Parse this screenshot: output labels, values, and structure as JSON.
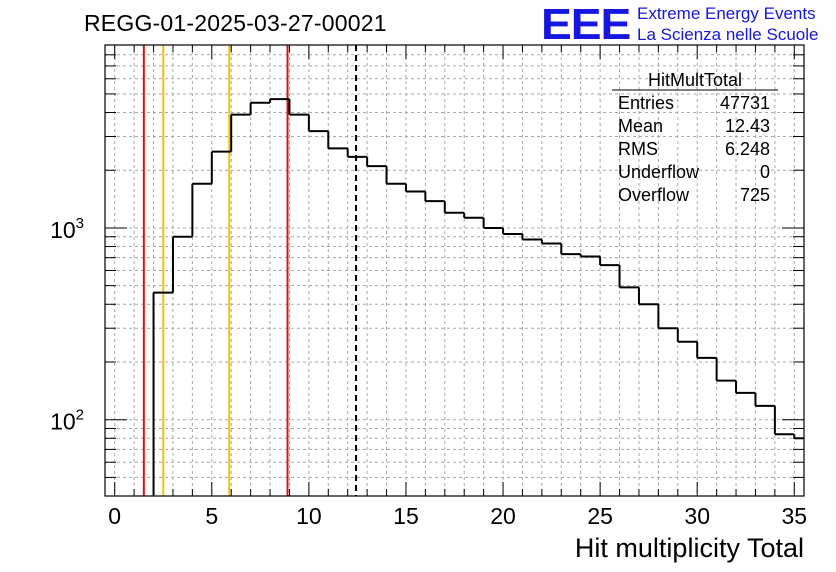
{
  "header": {
    "run_title": "REGG-01-2025-03-27-00021"
  },
  "logo": {
    "mark": "EEE",
    "line1": "Extreme Energy Events",
    "line2": "La Scienza nelle Scuole",
    "color": "#1616e0"
  },
  "stats_box": {
    "title": "HitMultTotal",
    "rows": [
      {
        "label": "Entries",
        "value": "47731"
      },
      {
        "label": "Mean",
        "value": "12.43"
      },
      {
        "label": "RMS",
        "value": "6.248"
      },
      {
        "label": "Underflow",
        "value": "0"
      },
      {
        "label": "Overflow",
        "value": "725"
      }
    ]
  },
  "chart_data": {
    "type": "histogram",
    "xlabel": "Hit multiplicity Total",
    "ylabel": "",
    "log_y": true,
    "grid": true,
    "xlim": [
      -0.5,
      35.5
    ],
    "ylim": [
      40,
      9000
    ],
    "x_ticks": [
      0,
      5,
      10,
      15,
      20,
      25,
      30,
      35
    ],
    "y_tick_labels": [
      {
        "base": "10",
        "exp": "3",
        "value": 1000
      },
      {
        "base": "10",
        "exp": "2",
        "value": 100
      }
    ],
    "bin_width": 1,
    "bins": [
      {
        "x": 2.5,
        "y": 460
      },
      {
        "x": 3.5,
        "y": 900
      },
      {
        "x": 4.5,
        "y": 1700
      },
      {
        "x": 5.5,
        "y": 2500
      },
      {
        "x": 6.5,
        "y": 3900
      },
      {
        "x": 7.5,
        "y": 4500
      },
      {
        "x": 8.5,
        "y": 4700
      },
      {
        "x": 9.5,
        "y": 3900
      },
      {
        "x": 10.5,
        "y": 3200
      },
      {
        "x": 11.5,
        "y": 2600
      },
      {
        "x": 12.5,
        "y": 2350
      },
      {
        "x": 13.5,
        "y": 2100
      },
      {
        "x": 14.5,
        "y": 1700
      },
      {
        "x": 15.5,
        "y": 1550
      },
      {
        "x": 16.5,
        "y": 1380
      },
      {
        "x": 17.5,
        "y": 1200
      },
      {
        "x": 18.5,
        "y": 1130
      },
      {
        "x": 19.5,
        "y": 1000
      },
      {
        "x": 20.5,
        "y": 930
      },
      {
        "x": 21.5,
        "y": 870
      },
      {
        "x": 22.5,
        "y": 830
      },
      {
        "x": 23.5,
        "y": 730
      },
      {
        "x": 24.5,
        "y": 710
      },
      {
        "x": 25.5,
        "y": 640
      },
      {
        "x": 26.5,
        "y": 490
      },
      {
        "x": 27.5,
        "y": 400
      },
      {
        "x": 28.5,
        "y": 300
      },
      {
        "x": 29.5,
        "y": 255
      },
      {
        "x": 30.5,
        "y": 210
      },
      {
        "x": 31.5,
        "y": 160
      },
      {
        "x": 32.5,
        "y": 138
      },
      {
        "x": 33.5,
        "y": 118
      },
      {
        "x": 34.5,
        "y": 84
      },
      {
        "x": 35.5,
        "y": 80
      }
    ],
    "vertical_lines": [
      {
        "x": 1.5,
        "color": "#e01010",
        "style": "solid"
      },
      {
        "x": 2.5,
        "color": "#f2c200",
        "style": "solid"
      },
      {
        "x": 5.9,
        "color": "#f2c200",
        "style": "solid"
      },
      {
        "x": 8.9,
        "color": "#e01010",
        "style": "solid"
      },
      {
        "x": 12.43,
        "color": "#000000",
        "style": "dashed"
      }
    ]
  }
}
